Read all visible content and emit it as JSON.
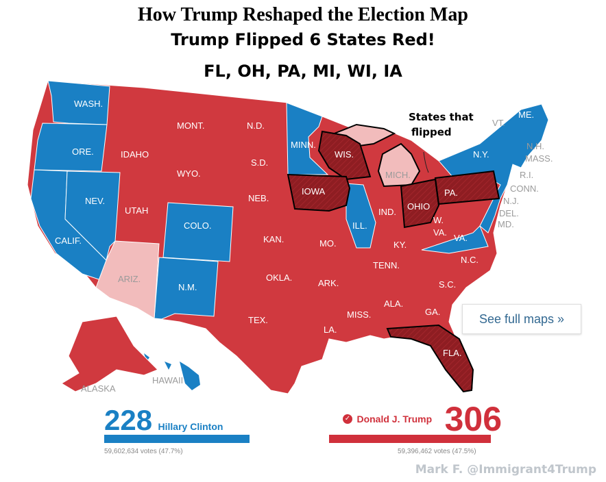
{
  "header": {
    "title": "How Trump Reshaped the Election Map",
    "subtitle": "Trump Flipped 6 States Red!",
    "flipped_list": "FL, OH, PA, MI, WI, IA"
  },
  "colors": {
    "clinton_blue": "#1a80c4",
    "trump_red": "#d0393f",
    "flipped_red": "#8e1d22",
    "light_pink": "#f2bcbc"
  },
  "annotation": {
    "line1": "States that",
    "line2": "flipped"
  },
  "states": {
    "wash": "WASH.",
    "ore": "ORE.",
    "calif": "CALIF.",
    "nev": "NEV.",
    "idaho": "IDAHO",
    "mont": "MONT.",
    "wyo": "WYO.",
    "utah": "UTAH",
    "colo": "COLO.",
    "ariz": "ARIZ.",
    "nm": "N.M.",
    "nd": "N.D.",
    "sd": "S.D.",
    "neb": "NEB.",
    "kan": "KAN.",
    "okla": "OKLA.",
    "tex": "TEX.",
    "minn": "MINN.",
    "iowa": "IOWA",
    "mo": "MO.",
    "ark": "ARK.",
    "la": "LA.",
    "wis": "WIS.",
    "ill": "ILL.",
    "mich": "MICH.",
    "ind": "IND.",
    "ohio": "OHIO",
    "ky": "KY.",
    "tenn": "TENN.",
    "miss": "MISS.",
    "ala": "ALA.",
    "ga": "GA.",
    "fla": "FLA.",
    "sc": "S.C.",
    "nc": "N.C.",
    "va": "VA.",
    "wva": "W. VA.",
    "pa": "PA.",
    "ny": "N.Y.",
    "vt": "VT.",
    "nh": "N.H.",
    "me": "ME.",
    "mass": "MASS.",
    "ri": "R.I.",
    "conn": "CONN.",
    "nj": "N.J.",
    "del": "DEL.",
    "md": "MD.",
    "alaska": "ALASKA",
    "hawaii": "HAWAII"
  },
  "see_full_maps": "See full maps »",
  "results": {
    "clinton": {
      "electoral_votes": "228",
      "name": "Hillary Clinton",
      "votes": "59,602,634 votes (47.7%)"
    },
    "trump": {
      "electoral_votes": "306",
      "name": "Donald J. Trump",
      "votes": "59,396,462 votes (47.5%)",
      "check_icon": "checkmark-icon"
    }
  },
  "credit": "Mark F. @Immigrant4Trump"
}
